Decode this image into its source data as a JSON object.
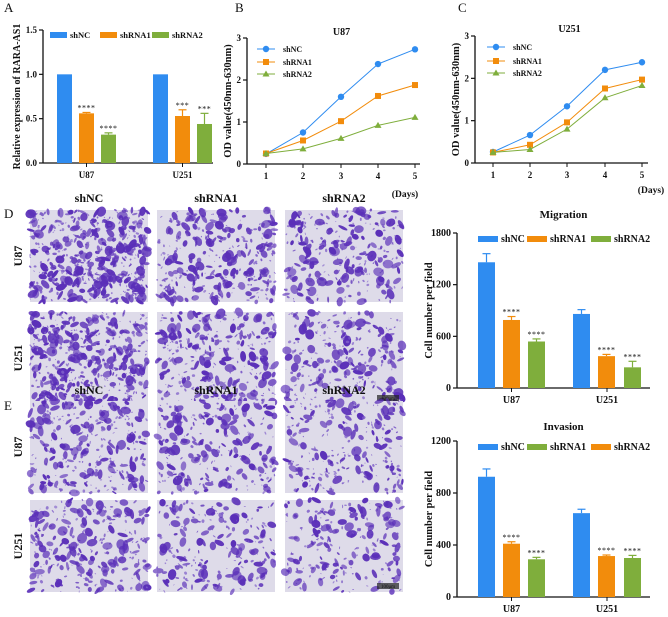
{
  "panel_labels": {
    "A": "A",
    "B": "B",
    "C": "C",
    "D": "D",
    "E": "E"
  },
  "colors": {
    "shNC": "#2f8cf0",
    "shRNA1": "#f28c0c",
    "shRNA2": "#7fae3c"
  },
  "micrographs": {
    "column_labels": [
      "shNC",
      "shRNA1",
      "shRNA2"
    ],
    "row_labels": [
      "U87",
      "U251"
    ],
    "scale_bar": "100μm"
  },
  "chart_data": [
    {
      "id": "A",
      "type": "bar",
      "title": "",
      "ylabel": "Relative expression of RARA-AS1",
      "xlabel": "",
      "ylim": [
        0,
        1.5
      ],
      "yticks": [
        "0.0",
        "0.5",
        "1.0",
        "1.5"
      ],
      "categories": [
        "U87",
        "U251"
      ],
      "legend": [
        "shNC",
        "shRNA1",
        "shRNA2"
      ],
      "series": [
        {
          "name": "shNC",
          "values": [
            1.0,
            1.0
          ],
          "errors": [
            0,
            0
          ],
          "sig": [
            "",
            ""
          ]
        },
        {
          "name": "shRNA1",
          "values": [
            0.56,
            0.53
          ],
          "errors": [
            0.01,
            0.07
          ],
          "sig": [
            "****",
            "***"
          ]
        },
        {
          "name": "shRNA2",
          "values": [
            0.32,
            0.44
          ],
          "errors": [
            0.02,
            0.12
          ],
          "sig": [
            "****",
            "***"
          ]
        }
      ]
    },
    {
      "id": "B",
      "type": "line",
      "title": "U87",
      "ylabel": "OD value(450nm-630nm)",
      "xlabel": "(Days)",
      "x": [
        1,
        2,
        3,
        4,
        5
      ],
      "ylim": [
        0,
        3
      ],
      "yticks": [
        "0",
        "1",
        "2",
        "3"
      ],
      "series": [
        {
          "name": "shNC",
          "marker": "circle",
          "values": [
            0.24,
            0.75,
            1.6,
            2.38,
            2.73
          ]
        },
        {
          "name": "shRNA1",
          "marker": "square",
          "values": [
            0.25,
            0.56,
            1.02,
            1.62,
            1.88
          ]
        },
        {
          "name": "shRNA2",
          "marker": "triangle",
          "values": [
            0.25,
            0.36,
            0.61,
            0.92,
            1.11
          ]
        }
      ]
    },
    {
      "id": "C",
      "type": "line",
      "title": "U251",
      "ylabel": "OD value(450nm-630nm)",
      "xlabel": "(Days)",
      "x": [
        1,
        2,
        3,
        4,
        5
      ],
      "ylim": [
        0,
        3
      ],
      "yticks": [
        "0",
        "1",
        "2",
        "3"
      ],
      "series": [
        {
          "name": "shNC",
          "marker": "circle",
          "values": [
            0.26,
            0.66,
            1.34,
            2.2,
            2.38
          ]
        },
        {
          "name": "shRNA1",
          "marker": "square",
          "values": [
            0.25,
            0.43,
            0.96,
            1.76,
            1.97
          ]
        },
        {
          "name": "shRNA2",
          "marker": "triangle",
          "values": [
            0.25,
            0.32,
            0.8,
            1.54,
            1.83
          ]
        }
      ]
    },
    {
      "id": "D",
      "type": "bar",
      "title": "Migration",
      "ylabel": "Cell number per field",
      "xlabel": "",
      "ylim": [
        0,
        1800
      ],
      "yticks": [
        "0",
        "600",
        "1200",
        "1800"
      ],
      "categories": [
        "U87",
        "U251"
      ],
      "legend": [
        "shNC",
        "shRNA1",
        "shRNA2"
      ],
      "series": [
        {
          "name": "shNC",
          "values": [
            1460,
            860
          ],
          "errors": [
            100,
            50
          ],
          "sig": [
            "",
            ""
          ]
        },
        {
          "name": "shRNA1",
          "values": [
            790,
            370
          ],
          "errors": [
            40,
            20
          ],
          "sig": [
            "****",
            "****"
          ]
        },
        {
          "name": "shRNA2",
          "values": [
            540,
            240
          ],
          "errors": [
            30,
            70
          ],
          "sig": [
            "****",
            "****"
          ]
        }
      ]
    },
    {
      "id": "E",
      "type": "bar",
      "title": "Invasion",
      "ylabel": "Cell number per field",
      "xlabel": "",
      "ylim": [
        0,
        1200
      ],
      "yticks": [
        "0",
        "400",
        "800",
        "1200"
      ],
      "categories": [
        "U87",
        "U251"
      ],
      "legend": [
        "shNC",
        "shRNA1",
        "shRNA2"
      ],
      "legend_colors": [
        "#2f8cf0",
        "#7fae3c",
        "#f28c0c"
      ],
      "series": [
        {
          "name": "shNC",
          "values": [
            925,
            645
          ],
          "errors": [
            60,
            30
          ],
          "sig": [
            "",
            ""
          ]
        },
        {
          "name": "shRNA1",
          "values": [
            410,
            315
          ],
          "errors": [
            15,
            8
          ],
          "sig": [
            "****",
            "****"
          ]
        },
        {
          "name": "shRNA2",
          "values": [
            290,
            300
          ],
          "errors": [
            15,
            20
          ],
          "sig": [
            "****",
            "****"
          ]
        }
      ]
    }
  ]
}
